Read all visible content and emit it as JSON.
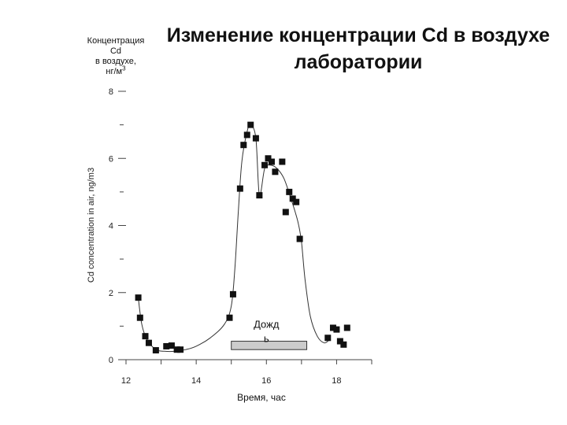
{
  "title": "Изменение концентрации Cd в воздухе лаборатории",
  "concentration_label": {
    "line1": "Концентрация",
    "line2": "Cd",
    "line3": "в воздухе,",
    "line4_text": "нг/м",
    "line4_sup": "3"
  },
  "chart_data": {
    "type": "scatter",
    "title": "Изменение концентрации Cd в воздухе лаборатории",
    "xlabel": "Время, час",
    "ylabel": "Cd concentration in air, ng/m3",
    "xlim": [
      12,
      19
    ],
    "ylim": [
      0,
      8
    ],
    "x_ticks": [
      12,
      14,
      16,
      18
    ],
    "y_ticks": [
      0,
      2,
      4,
      6,
      8
    ],
    "y_minor_ticks": [
      1,
      3,
      5,
      7
    ],
    "grid": false,
    "marker_color": "#111111",
    "curve_color": "#333333",
    "series": [
      {
        "points": [
          [
            12.35,
            1.85
          ],
          [
            12.4,
            1.25
          ],
          [
            12.55,
            0.7
          ],
          [
            12.65,
            0.5
          ],
          [
            12.85,
            0.28
          ],
          [
            13.15,
            0.4
          ],
          [
            13.3,
            0.42
          ],
          [
            13.45,
            0.3
          ],
          [
            13.55,
            0.3
          ],
          [
            14.95,
            1.25
          ],
          [
            15.05,
            1.95
          ],
          [
            15.25,
            5.1
          ],
          [
            15.35,
            6.4
          ],
          [
            15.45,
            6.7
          ],
          [
            15.55,
            7.0
          ],
          [
            15.7,
            6.6
          ],
          [
            15.8,
            4.9
          ],
          [
            15.95,
            5.8
          ],
          [
            16.05,
            6.0
          ],
          [
            16.15,
            5.9
          ],
          [
            16.25,
            5.6
          ],
          [
            16.45,
            5.9
          ],
          [
            16.55,
            4.4
          ],
          [
            16.65,
            5.0
          ],
          [
            16.75,
            4.8
          ],
          [
            16.85,
            4.7
          ],
          [
            16.95,
            3.6
          ],
          [
            17.75,
            0.65
          ],
          [
            17.9,
            0.95
          ],
          [
            18.0,
            0.9
          ],
          [
            18.1,
            0.55
          ],
          [
            18.2,
            0.45
          ],
          [
            18.3,
            0.95
          ]
        ]
      }
    ],
    "fit_curve": [
      [
        12.35,
        1.85
      ],
      [
        12.45,
        1.05
      ],
      [
        12.6,
        0.6
      ],
      [
        12.85,
        0.3
      ],
      [
        13.1,
        0.25
      ],
      [
        13.4,
        0.25
      ],
      [
        13.7,
        0.3
      ],
      [
        14.0,
        0.4
      ],
      [
        14.4,
        0.65
      ],
      [
        14.8,
        1.05
      ],
      [
        15.0,
        1.6
      ],
      [
        15.1,
        2.7
      ],
      [
        15.2,
        4.4
      ],
      [
        15.3,
        5.9
      ],
      [
        15.45,
        6.8
      ],
      [
        15.55,
        7.0
      ],
      [
        15.7,
        6.6
      ],
      [
        15.8,
        4.9
      ],
      [
        15.95,
        5.7
      ],
      [
        16.1,
        5.8
      ],
      [
        16.3,
        5.7
      ],
      [
        16.5,
        5.4
      ],
      [
        16.7,
        4.8
      ],
      [
        16.9,
        4.1
      ],
      [
        17.0,
        3.5
      ],
      [
        17.1,
        2.4
      ],
      [
        17.25,
        1.3
      ],
      [
        17.45,
        0.7
      ],
      [
        17.65,
        0.5
      ],
      [
        17.8,
        0.6
      ]
    ],
    "annotation": {
      "label_line1": "Дожд",
      "label_line2": "ь",
      "x_start": 15.0,
      "x_end": 17.15,
      "bar_color": "#cccccc"
    }
  }
}
